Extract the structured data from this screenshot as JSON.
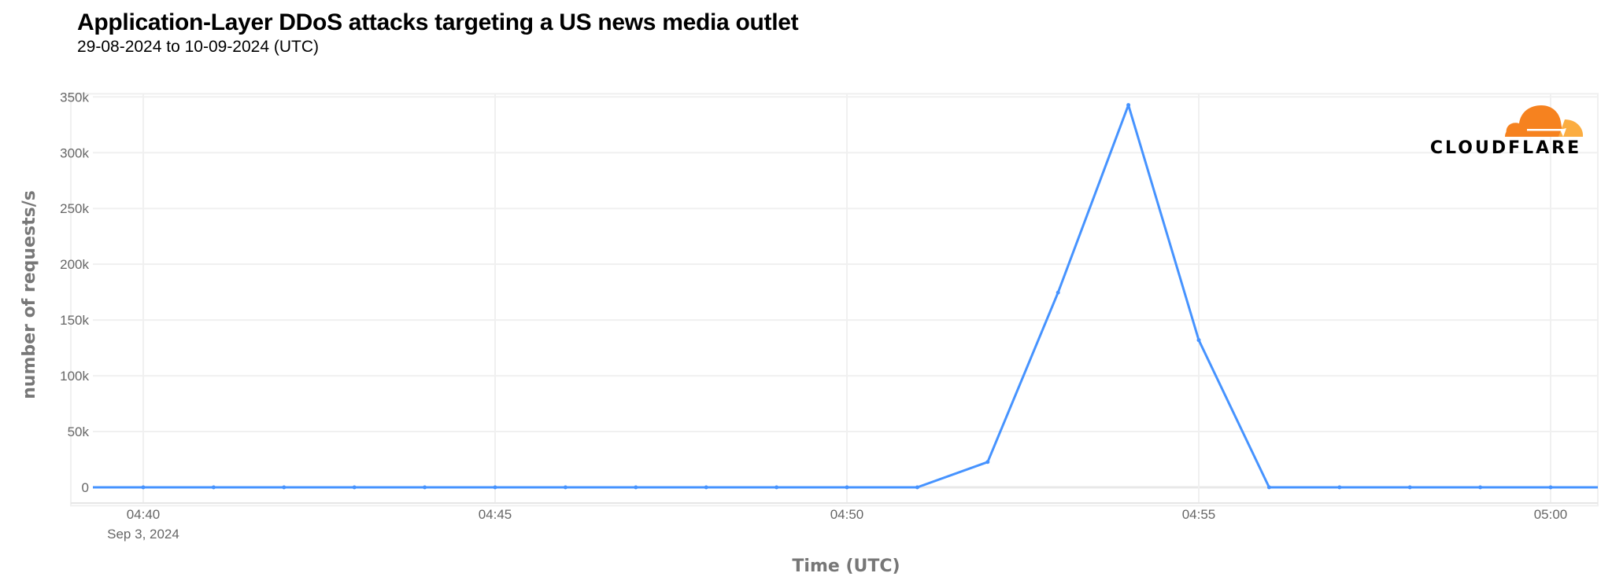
{
  "chart_data": {
    "type": "line",
    "title": "Application-Layer DDoS attacks targeting a US news media outlet",
    "subtitle": "29-08-2024 to 10-09-2024 (UTC)",
    "xlabel": "Time (UTC)",
    "ylabel": "number of requests/s",
    "x_tick_labels": [
      "04:40",
      "04:45",
      "04:50",
      "04:55",
      "05:00"
    ],
    "x_date_label": "Sep 3, 2024",
    "y_tick_labels": [
      "0",
      "50k",
      "100k",
      "150k",
      "200k",
      "250k",
      "300k",
      "350k"
    ],
    "ylim": [
      0,
      350000
    ],
    "xlim_minutes_after_0440": [
      -0.72,
      20.7
    ],
    "grid": true,
    "series": [
      {
        "name": "requests/s",
        "color": "#4693ff",
        "x": [
          "04:39",
          "04:40",
          "04:41",
          "04:42",
          "04:43",
          "04:44",
          "04:45",
          "04:46",
          "04:47",
          "04:48",
          "04:49",
          "04:50",
          "04:51",
          "04:52",
          "04:53",
          "04:54",
          "04:55",
          "04:56",
          "04:57",
          "04:58",
          "04:59",
          "05:00",
          "05:01"
        ],
        "values": [
          0,
          0,
          0,
          0,
          0,
          0,
          0,
          0,
          0,
          0,
          0,
          0,
          0,
          22700,
          174600,
          342700,
          132000,
          0,
          0,
          0,
          0,
          0,
          0
        ]
      }
    ]
  },
  "logo": {
    "text": "CLOUDFLARE",
    "colors": {
      "primary": "#f6821f",
      "secondary": "#fbad41"
    }
  }
}
